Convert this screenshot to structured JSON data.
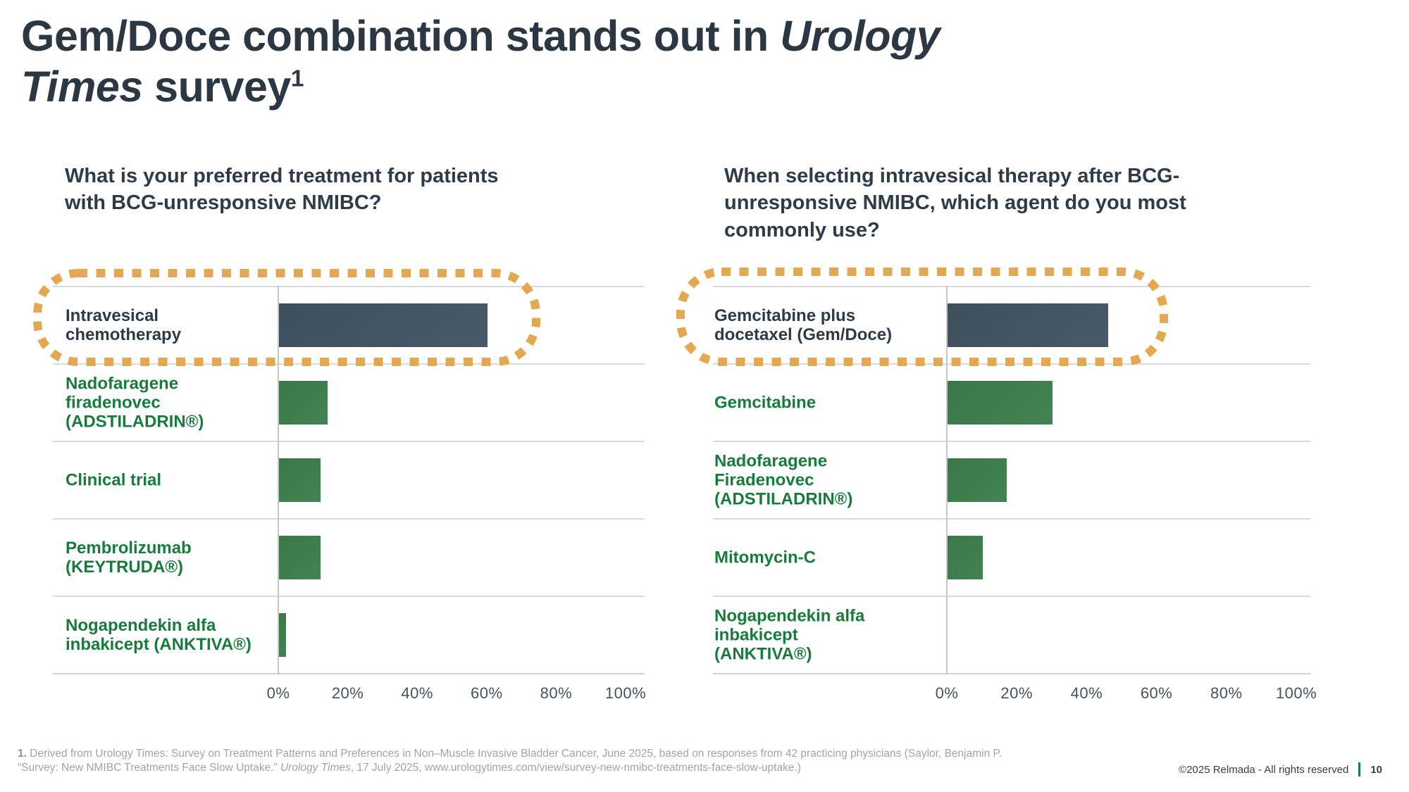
{
  "title": {
    "line1_regular": "Gem/Doce combination stands out in ",
    "line1_italic": "Urology",
    "line2_italic": "Times",
    "line2_regular": " survey",
    "superscript": "1"
  },
  "colors": {
    "title_text": "#2b3843",
    "question_text": "#2e3b48",
    "label_green": "#177b3b",
    "label_dark": "#2e3b47",
    "bar_green": "#3d7b4c",
    "bar_highlight_slate": "#435665",
    "highlight_outline_orange": "#e3a851",
    "gridline": "#dadada",
    "axis_line": "#c6c6c6",
    "footnote_text": "#a3a3a3",
    "footer_divider_green": "#1e7a45"
  },
  "chart_data": [
    {
      "type": "bar",
      "orientation": "horizontal",
      "title": "What is your preferred treatment for patients\nwith BCG-unresponsive NMIBC?",
      "categories": [
        "Intravesical\nchemotherapy",
        "Nadofaragene\nfiradenovec\n(ADSTILADRIN®)",
        "Clinical trial",
        "Pembrolizumab\n(KEYTRUDA®)",
        "Nogapendekin alfa\ninbakicept (ANKTIVA®)"
      ],
      "values": [
        60,
        14,
        12,
        12,
        2
      ],
      "unit": "%",
      "xlim": [
        0,
        100
      ],
      "x_ticks": [
        "0%",
        "20%",
        "40%",
        "60%",
        "80%",
        "100%"
      ],
      "grid": "row-separators-only",
      "highlight_index": 0,
      "highlight_style": "orange dotted rounded outline around top category and its bar",
      "legend": "none"
    },
    {
      "type": "bar",
      "orientation": "horizontal",
      "title": "When selecting intravesical therapy after BCG-\nunresponsive NMIBC, which agent do you most\ncommonly use?",
      "categories": [
        "Gemcitabine plus\ndocetaxel (Gem/Doce)",
        "Gemcitabine",
        "Nadofaragene\nFiradenovec\n(ADSTILADRIN®)",
        "Mitomycin-C",
        "Nogapendekin alfa\ninbakicept\n(ANKTIVA®)"
      ],
      "values": [
        46,
        30,
        17,
        10,
        0
      ],
      "unit": "%",
      "xlim": [
        0,
        100
      ],
      "x_ticks": [
        "0%",
        "20%",
        "40%",
        "60%",
        "80%",
        "100%"
      ],
      "grid": "row-separators-only",
      "highlight_index": 0,
      "highlight_style": "orange dotted rounded outline around top category and its bar",
      "legend": "none"
    }
  ],
  "footnote": {
    "marker": "1.",
    "line1": " Derived from Urology Times: Survey on Treatment Patterns and Preferences in Non–Muscle Invasive Bladder Cancer, June 2025, based on responses from 42 practicing physicians (Saylor, Benjamin P.",
    "line2_before_italic": "“Survey: New NMIBC Treatments Face Slow Uptake.” ",
    "line2_italic": "Urology Times",
    "line2_after_italic": ", 17 July 2025, www.urologytimes.com/view/survey-new-nmibc-treatments-face-slow-uptake.)"
  },
  "footer": {
    "copyright": "©2025 Relmada - All rights reserved",
    "page_number": "10"
  }
}
